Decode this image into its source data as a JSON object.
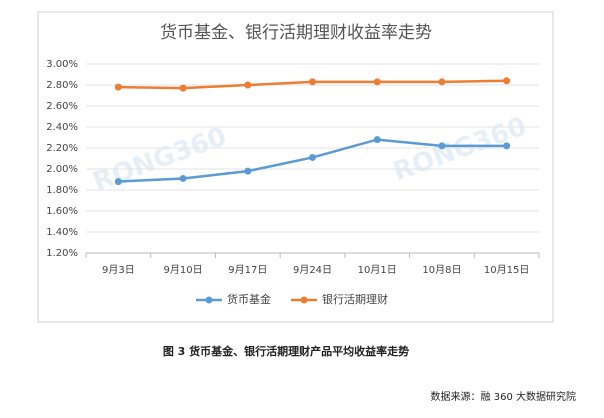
{
  "chart_data": {
    "type": "line",
    "title": "货币基金、银行活期理财收益率走势",
    "watermark": "RONG360",
    "categories": [
      "9月3日",
      "9月10日",
      "9月17日",
      "9月24日",
      "10月1日",
      "10月8日",
      "10月15日"
    ],
    "series": [
      {
        "name": "货币基金",
        "color": "#5b9bd5",
        "values": [
          1.88,
          1.91,
          1.98,
          2.11,
          2.28,
          2.22,
          2.22
        ]
      },
      {
        "name": "银行活期理财",
        "color": "#ed7d31",
        "values": [
          2.78,
          2.77,
          2.8,
          2.83,
          2.83,
          2.83,
          2.84
        ]
      }
    ],
    "ylim": [
      1.2,
      3.0
    ],
    "yticks": [
      {
        "value": 1.2,
        "label": "1.20%"
      },
      {
        "value": 1.4,
        "label": "1.40%"
      },
      {
        "value": 1.6,
        "label": "1.60%"
      },
      {
        "value": 1.8,
        "label": "1.80%"
      },
      {
        "value": 2.0,
        "label": "2.00%"
      },
      {
        "value": 2.2,
        "label": "2.20%"
      },
      {
        "value": 2.4,
        "label": "2.40%"
      },
      {
        "value": 2.6,
        "label": "2.60%"
      },
      {
        "value": 2.8,
        "label": "2.80%"
      },
      {
        "value": 3.0,
        "label": "3.00%"
      }
    ],
    "grid": true,
    "legend": "bottom"
  },
  "caption": "图 3 货币基金、银行活期理财产品平均收益率走势",
  "source": "数据来源：融 360 大数据研究院"
}
